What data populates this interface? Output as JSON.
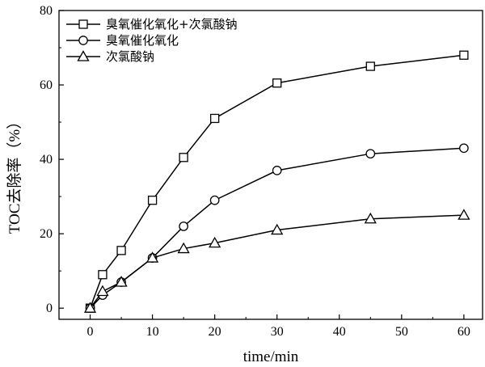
{
  "chart_data": {
    "type": "line",
    "xlabel": "time/min",
    "ylabel": "TOC去除率（%）",
    "xlim": [
      -5,
      63
    ],
    "ylim": [
      -3,
      80
    ],
    "xticks": [
      0,
      10,
      20,
      30,
      40,
      50,
      60
    ],
    "yticks": [
      0,
      20,
      40,
      60,
      80
    ],
    "legend_position": "top-left",
    "series": [
      {
        "name": "臭氧催化氧化+次氯酸钠",
        "marker": "square",
        "x": [
          0,
          2,
          5,
          10,
          15,
          20,
          30,
          45,
          60
        ],
        "y": [
          0,
          9,
          15.5,
          29,
          40.5,
          51,
          60.5,
          65,
          68
        ]
      },
      {
        "name": "臭氧催化氧化",
        "marker": "circle",
        "x": [
          0,
          2,
          5,
          10,
          15,
          20,
          30,
          45,
          60
        ],
        "y": [
          0,
          3.5,
          7,
          13.5,
          22,
          29,
          37,
          41.5,
          43
        ]
      },
      {
        "name": "次氯酸钠",
        "marker": "triangle",
        "x": [
          0,
          2,
          5,
          10,
          15,
          20,
          30,
          45,
          60
        ],
        "y": [
          0,
          4.5,
          7,
          13.5,
          16,
          17.5,
          21,
          24,
          25
        ]
      }
    ]
  }
}
